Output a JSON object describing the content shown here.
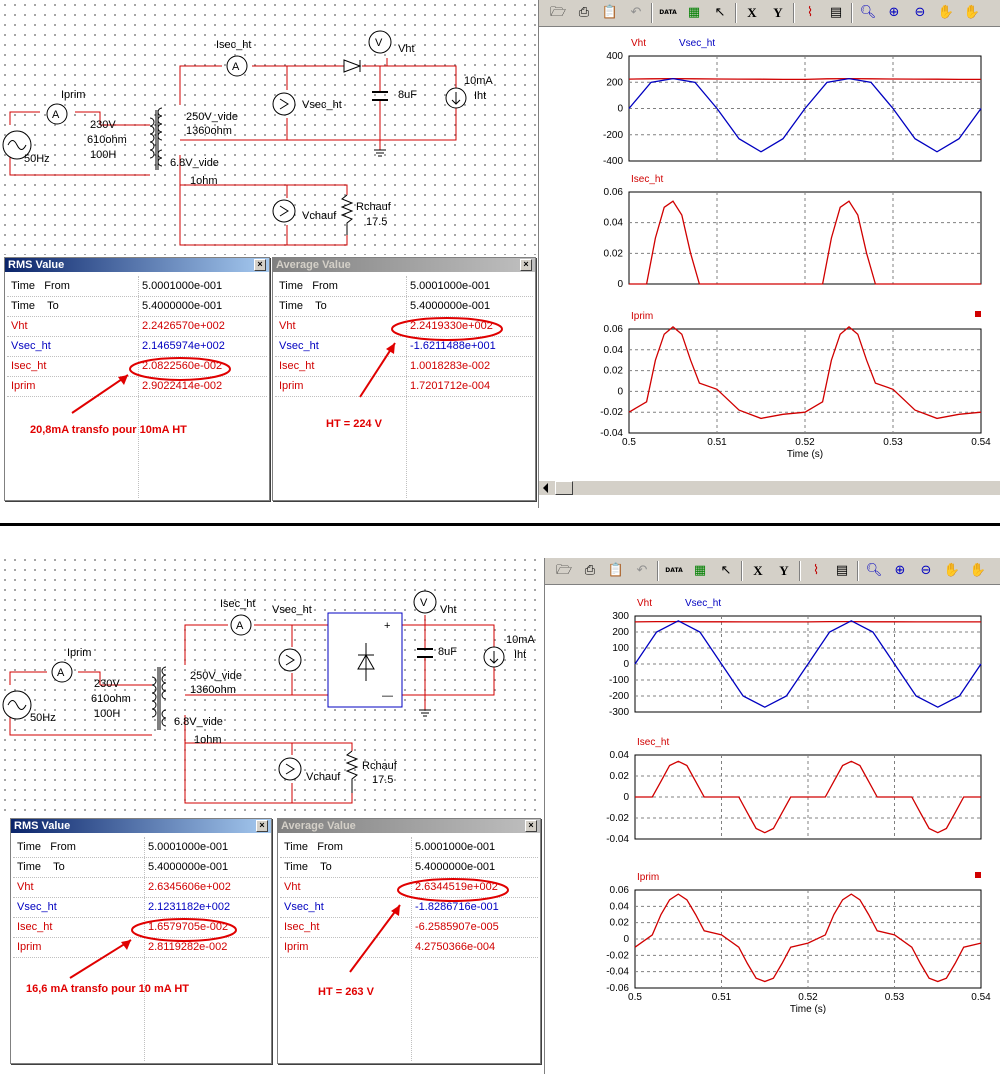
{
  "sim1": {
    "schematic": {
      "labels": {
        "iprim": "Iprim",
        "isec_ht": "Isec_ht",
        "vht": "Vht",
        "vsec_ht": "Vsec_ht",
        "vchauf": "Vchauf",
        "rchauf": "Rchauf",
        "rchauf_val": "17.5",
        "prim_v": "230V",
        "prim_r": "610ohm",
        "prim_l": "100H",
        "sec_v": "250V_vide",
        "sec_r": "1360ohm",
        "fil_v": "6.8V_vide",
        "fil_r": "1ohm",
        "freq": "50Hz",
        "cap": "8uF",
        "iload_val": "10mA",
        "iload": "Iht",
        "ammeter": "A",
        "voltmeter": "V"
      }
    },
    "rms": {
      "title": "RMS Value",
      "close": "×",
      "time_label": "Time",
      "from_label": "From",
      "to_label": "To",
      "from": "5.0001000e-001",
      "to": "5.4000000e-001",
      "rows": [
        {
          "name": "Vht",
          "value": "2.2426570e+002"
        },
        {
          "name": "Vsec_ht",
          "value": "2.1465974e+002"
        },
        {
          "name": "Isec_ht",
          "value": "2.0822560e-002"
        },
        {
          "name": "Iprim",
          "value": "2.9022414e-002"
        }
      ]
    },
    "avg": {
      "title": "Average Value",
      "close": "×",
      "time_label": "Time",
      "from_label": "From",
      "to_label": "To",
      "from": "5.0001000e-001",
      "to": "5.4000000e-001",
      "rows": [
        {
          "name": "Vht",
          "value": "2.2419330e+002"
        },
        {
          "name": "Vsec_ht",
          "value": "-1.6211488e+001"
        },
        {
          "name": "Isec_ht",
          "value": "1.0018283e-002"
        },
        {
          "name": "Iprim",
          "value": "1.7201712e-004"
        }
      ]
    },
    "annotations": {
      "left": "20,8mA transfo   pour 10mA HT",
      "right": "HT = 224 V"
    }
  },
  "sim2": {
    "schematic": {
      "labels": {
        "iprim": "Iprim",
        "isec_ht": "Isec_ht",
        "vht": "Vht",
        "vsec_ht": "Vsec_ht",
        "vchauf": "Vchauf",
        "rchauf": "Rchauf",
        "rchauf_val": "17.5",
        "prim_v": "230V",
        "prim_r": "610ohm",
        "prim_l": "100H",
        "sec_v": "250V_vide",
        "sec_r": "1360ohm",
        "fil_v": "6.8V_vide",
        "fil_r": "1ohm",
        "freq": "50Hz",
        "cap": "8uF",
        "iload_val": "10mA",
        "iload": "Iht",
        "ammeter": "A",
        "voltmeter": "V",
        "bridge_plus": "+",
        "bridge_minus": "—"
      }
    },
    "rms": {
      "title": "RMS Value",
      "close": "×",
      "time_label": "Time",
      "from_label": "From",
      "to_label": "To",
      "from": "5.0001000e-001",
      "to": "5.4000000e-001",
      "rows": [
        {
          "name": "Vht",
          "value": "2.6345606e+002"
        },
        {
          "name": "Vsec_ht",
          "value": "2.1231182e+002"
        },
        {
          "name": "Isec_ht",
          "value": "1.6579705e-002"
        },
        {
          "name": "Iprim",
          "value": "2.8119282e-002"
        }
      ]
    },
    "avg": {
      "title": "Average Value",
      "close": "×",
      "time_label": "Time",
      "from_label": "From",
      "to_label": "To",
      "from": "5.0001000e-001",
      "to": "5.4000000e-001",
      "rows": [
        {
          "name": "Vht",
          "value": "2.6344519e+002"
        },
        {
          "name": "Vsec_ht",
          "value": "-1.8286716e-001"
        },
        {
          "name": "Isec_ht",
          "value": "-6.2585907e-005"
        },
        {
          "name": "Iprim",
          "value": "4.2750366e-004"
        }
      ]
    },
    "annotations": {
      "left": "16,6 mA transfo  pour 10 mA HT",
      "right": "HT = 263 V"
    }
  },
  "toolbar": {
    "icons": [
      "open-folder-icon",
      "print-icon",
      "clipboard-icon",
      "undo-icon",
      "data-icon",
      "edit-data-icon",
      "pointer-icon",
      "x-cursor-icon",
      "y-cursor-icon",
      "chart-icon",
      "table-icon",
      "zoom-icon",
      "zoom-in-icon",
      "zoom-out-icon",
      "pan-hand-icon",
      "pan-plus-hand-icon"
    ],
    "data_label": "DATA",
    "x_label": "X",
    "y_label": "Y"
  },
  "colors": {
    "red": "#d00000",
    "blue": "#0000c0",
    "grid": "#808080"
  },
  "chart_data": [
    {
      "type": "line",
      "title": "Vht  Vsec_ht",
      "x": [
        0.5,
        0.5025,
        0.505,
        0.5075,
        0.51,
        0.5125,
        0.515,
        0.5175,
        0.52,
        0.5225,
        0.525,
        0.5275,
        0.53,
        0.5325,
        0.535,
        0.5375,
        0.54
      ],
      "series": [
        {
          "name": "Vht",
          "color": "#d00000",
          "values": [
            224,
            226,
            228,
            226,
            225,
            224,
            223,
            222,
            222,
            226,
            228,
            226,
            225,
            224,
            223,
            222,
            222
          ]
        },
        {
          "name": "Vsec_ht",
          "color": "#0000c0",
          "values": [
            0,
            200,
            228,
            200,
            0,
            -230,
            -330,
            -230,
            0,
            200,
            228,
            200,
            0,
            -230,
            -330,
            -230,
            0
          ]
        }
      ],
      "ylim": [
        -400,
        400
      ],
      "yticks": [
        400,
        200,
        0,
        -200,
        -400
      ],
      "xlim": [
        0.5,
        0.54
      ],
      "xticks": [
        0.5,
        0.51,
        0.52,
        0.53,
        0.54
      ]
    },
    {
      "type": "line",
      "title": "Isec_ht",
      "x": [
        0.5,
        0.501,
        0.502,
        0.503,
        0.504,
        0.505,
        0.506,
        0.507,
        0.508,
        0.51,
        0.52,
        0.521,
        0.522,
        0.523,
        0.524,
        0.525,
        0.526,
        0.527,
        0.528,
        0.54
      ],
      "series": [
        {
          "name": "Isec_ht",
          "color": "#d00000",
          "values": [
            0,
            0,
            0,
            0.03,
            0.05,
            0.054,
            0.045,
            0.02,
            0,
            0,
            0,
            0,
            0,
            0.03,
            0.05,
            0.054,
            0.045,
            0.02,
            0,
            0
          ]
        }
      ],
      "ylim": [
        0,
        0.06
      ],
      "yticks": [
        0.06,
        0.04,
        0.02,
        0
      ],
      "xlim": [
        0.5,
        0.54
      ],
      "xticks": [
        0.5,
        0.51,
        0.52,
        0.53,
        0.54
      ]
    },
    {
      "type": "line",
      "title": "Iprim",
      "x": [
        0.5,
        0.502,
        0.503,
        0.504,
        0.505,
        0.506,
        0.507,
        0.508,
        0.51,
        0.5125,
        0.515,
        0.5175,
        0.52,
        0.522,
        0.523,
        0.524,
        0.525,
        0.526,
        0.527,
        0.528,
        0.53,
        0.5325,
        0.535,
        0.5375,
        0.54
      ],
      "series": [
        {
          "name": "Iprim",
          "color": "#d00000",
          "values": [
            -0.02,
            -0.01,
            0.03,
            0.055,
            0.062,
            0.055,
            0.03,
            0.008,
            0.002,
            -0.018,
            -0.026,
            -0.022,
            -0.02,
            -0.01,
            0.03,
            0.055,
            0.062,
            0.055,
            0.03,
            0.008,
            0.002,
            -0.018,
            -0.026,
            -0.022,
            -0.02
          ]
        }
      ],
      "ylim": [
        -0.04,
        0.06
      ],
      "yticks": [
        0.06,
        0.04,
        0.02,
        0,
        -0.02,
        -0.04
      ],
      "xlim": [
        0.5,
        0.54
      ],
      "xticks": [
        0.5,
        0.51,
        0.52,
        0.53,
        0.54
      ],
      "xlabel": "Time (s)"
    },
    {
      "type": "line",
      "title": "Vht  Vsec_ht",
      "x": [
        0.5,
        0.5025,
        0.505,
        0.5075,
        0.51,
        0.5125,
        0.515,
        0.5175,
        0.52,
        0.5225,
        0.525,
        0.5275,
        0.53,
        0.5325,
        0.535,
        0.5375,
        0.54
      ],
      "series": [
        {
          "name": "Vht",
          "color": "#d00000",
          "values": [
            263,
            265,
            265,
            264,
            264,
            263,
            263,
            263,
            263,
            265,
            265,
            264,
            264,
            263,
            263,
            263,
            263
          ]
        },
        {
          "name": "Vsec_ht",
          "color": "#0000c0",
          "values": [
            0,
            200,
            270,
            200,
            0,
            -200,
            -270,
            -200,
            0,
            200,
            270,
            200,
            0,
            -200,
            -270,
            -200,
            0
          ]
        }
      ],
      "ylim": [
        -300,
        300
      ],
      "yticks": [
        300,
        200,
        100,
        0,
        -100,
        -200,
        -300
      ],
      "xlim": [
        0.5,
        0.54
      ],
      "xticks": [
        0.5,
        0.51,
        0.52,
        0.53,
        0.54
      ]
    },
    {
      "type": "line",
      "title": "Isec_ht",
      "x": [
        0.5,
        0.502,
        0.503,
        0.504,
        0.505,
        0.506,
        0.507,
        0.508,
        0.512,
        0.513,
        0.514,
        0.515,
        0.516,
        0.517,
        0.518,
        0.52,
        0.522,
        0.523,
        0.524,
        0.525,
        0.526,
        0.527,
        0.528,
        0.532,
        0.533,
        0.534,
        0.535,
        0.536,
        0.537,
        0.538,
        0.54
      ],
      "series": [
        {
          "name": "Isec_ht",
          "color": "#d00000",
          "values": [
            0,
            0,
            0.015,
            0.03,
            0.034,
            0.03,
            0.015,
            0,
            0,
            -0.015,
            -0.03,
            -0.034,
            -0.03,
            -0.015,
            0,
            0,
            0,
            0.015,
            0.03,
            0.034,
            0.03,
            0.015,
            0,
            0,
            -0.015,
            -0.03,
            -0.034,
            -0.03,
            -0.015,
            0,
            0
          ]
        }
      ],
      "ylim": [
        -0.04,
        0.04
      ],
      "yticks": [
        0.04,
        0.02,
        0,
        -0.02,
        -0.04
      ],
      "xlim": [
        0.5,
        0.54
      ],
      "xticks": [
        0.5,
        0.51,
        0.52,
        0.53,
        0.54
      ]
    },
    {
      "type": "line",
      "title": "Iprim",
      "x": [
        0.5,
        0.502,
        0.503,
        0.504,
        0.505,
        0.506,
        0.507,
        0.508,
        0.51,
        0.512,
        0.513,
        0.514,
        0.515,
        0.516,
        0.517,
        0.518,
        0.52,
        0.522,
        0.523,
        0.524,
        0.525,
        0.526,
        0.527,
        0.528,
        0.53,
        0.532,
        0.533,
        0.534,
        0.535,
        0.536,
        0.537,
        0.538,
        0.54
      ],
      "series": [
        {
          "name": "Iprim",
          "color": "#d00000",
          "values": [
            -0.01,
            0.005,
            0.03,
            0.048,
            0.055,
            0.048,
            0.03,
            0.01,
            0.005,
            -0.01,
            -0.03,
            -0.048,
            -0.052,
            -0.048,
            -0.03,
            -0.01,
            -0.005,
            0.005,
            0.03,
            0.048,
            0.055,
            0.048,
            0.03,
            0.01,
            0.005,
            -0.01,
            -0.03,
            -0.048,
            -0.052,
            -0.048,
            -0.03,
            -0.01,
            -0.005
          ]
        }
      ],
      "ylim": [
        -0.06,
        0.06
      ],
      "yticks": [
        0.06,
        0.04,
        0.02,
        0,
        -0.02,
        -0.04,
        -0.06
      ],
      "xlim": [
        0.5,
        0.54
      ],
      "xticks": [
        0.5,
        0.51,
        0.52,
        0.53,
        0.54
      ],
      "xlabel": "Time (s)"
    }
  ]
}
